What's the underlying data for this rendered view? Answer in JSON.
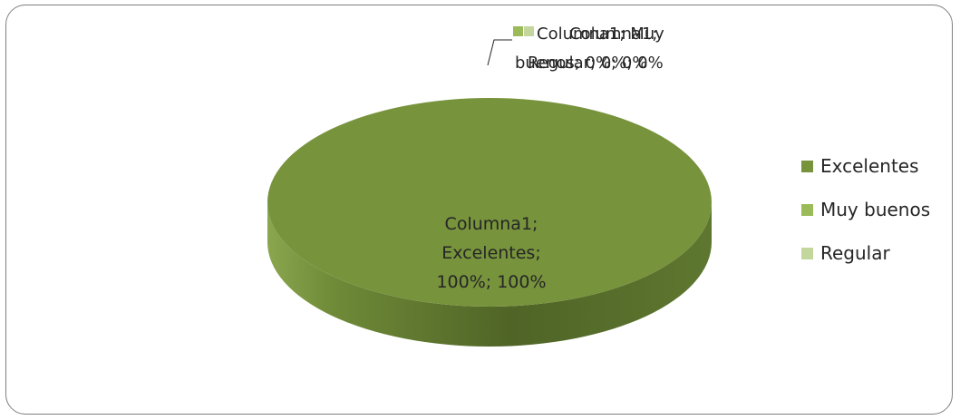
{
  "chart_data": {
    "type": "pie",
    "style": "3d",
    "categories": [
      "Excelentes",
      "Muy buenos",
      "Regular"
    ],
    "series": [
      {
        "name": "Columna1",
        "values": [
          1.0,
          0.0,
          0.0
        ]
      }
    ],
    "value_format": "percent",
    "title": "",
    "legend": {
      "placement": "right",
      "entries": [
        "Excelentes",
        "Muy buenos",
        "Regular"
      ]
    },
    "colors": [
      "#77933c",
      "#9bbb59",
      "#c3d69b"
    ],
    "data_labels": [
      {
        "category": "Excelentes",
        "lines": [
          "Columna1;",
          "Excelentes;",
          "100%; 100%"
        ]
      },
      {
        "category": "Muy buenos",
        "lines": [
          "Columna1; Muy",
          "buenos; 0%; 0%"
        ]
      },
      {
        "category": "Regular",
        "lines": [
          "Columna1;",
          "Regular; 0%; 0%"
        ]
      }
    ]
  }
}
